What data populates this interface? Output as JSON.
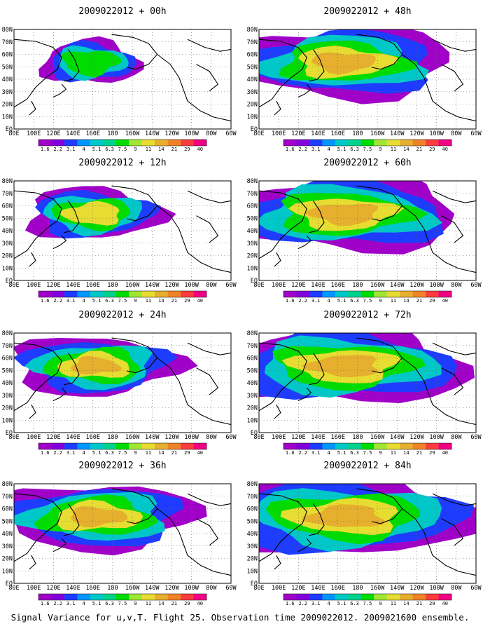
{
  "figure": {
    "footer": "Signal Variance for u,v,T. Flight 25. Observation time 2009022012. 2009021600 ensemble.",
    "panels": [
      {
        "title": "2009022012 + 00h",
        "intensity": 0.35,
        "spread": 0.22
      },
      {
        "title": "2009022012 + 12h",
        "intensity": 0.5,
        "spread": 0.4
      },
      {
        "title": "2009022012 + 24h",
        "intensity": 0.6,
        "spread": 0.55
      },
      {
        "title": "2009022012 + 36h",
        "intensity": 0.62,
        "spread": 0.7
      },
      {
        "title": "2009022012 + 48h",
        "intensity": 0.58,
        "spread": 0.8
      },
      {
        "title": "2009022012 + 60h",
        "intensity": 0.55,
        "spread": 0.88
      },
      {
        "title": "2009022012 + 72h",
        "intensity": 0.55,
        "spread": 0.93
      },
      {
        "title": "2009022012 + 84h",
        "intensity": 0.6,
        "spread": 1.0
      }
    ],
    "lat_labels": [
      "80N",
      "70N",
      "60N",
      "50N",
      "40N",
      "30N",
      "20N",
      "10N",
      "EQ"
    ],
    "lon_labels": [
      "80E",
      "100E",
      "120E",
      "140E",
      "160E",
      "180",
      "160W",
      "140W",
      "120W",
      "100W",
      "80W",
      "60W"
    ],
    "colorbar": {
      "labels": [
        "1.6",
        "2.2",
        "3.1",
        "4",
        "5.1",
        "6.3",
        "7.5",
        "9",
        "11",
        "14",
        "21",
        "29",
        "40"
      ],
      "colors": [
        "#a000c8",
        "#8200dc",
        "#1e3cff",
        "#0096ff",
        "#00c8c8",
        "#00d28c",
        "#00dc00",
        "#a0e632",
        "#e6dc32",
        "#e6af2d",
        "#f08228",
        "#fa3c3c",
        "#f00082"
      ]
    }
  }
}
